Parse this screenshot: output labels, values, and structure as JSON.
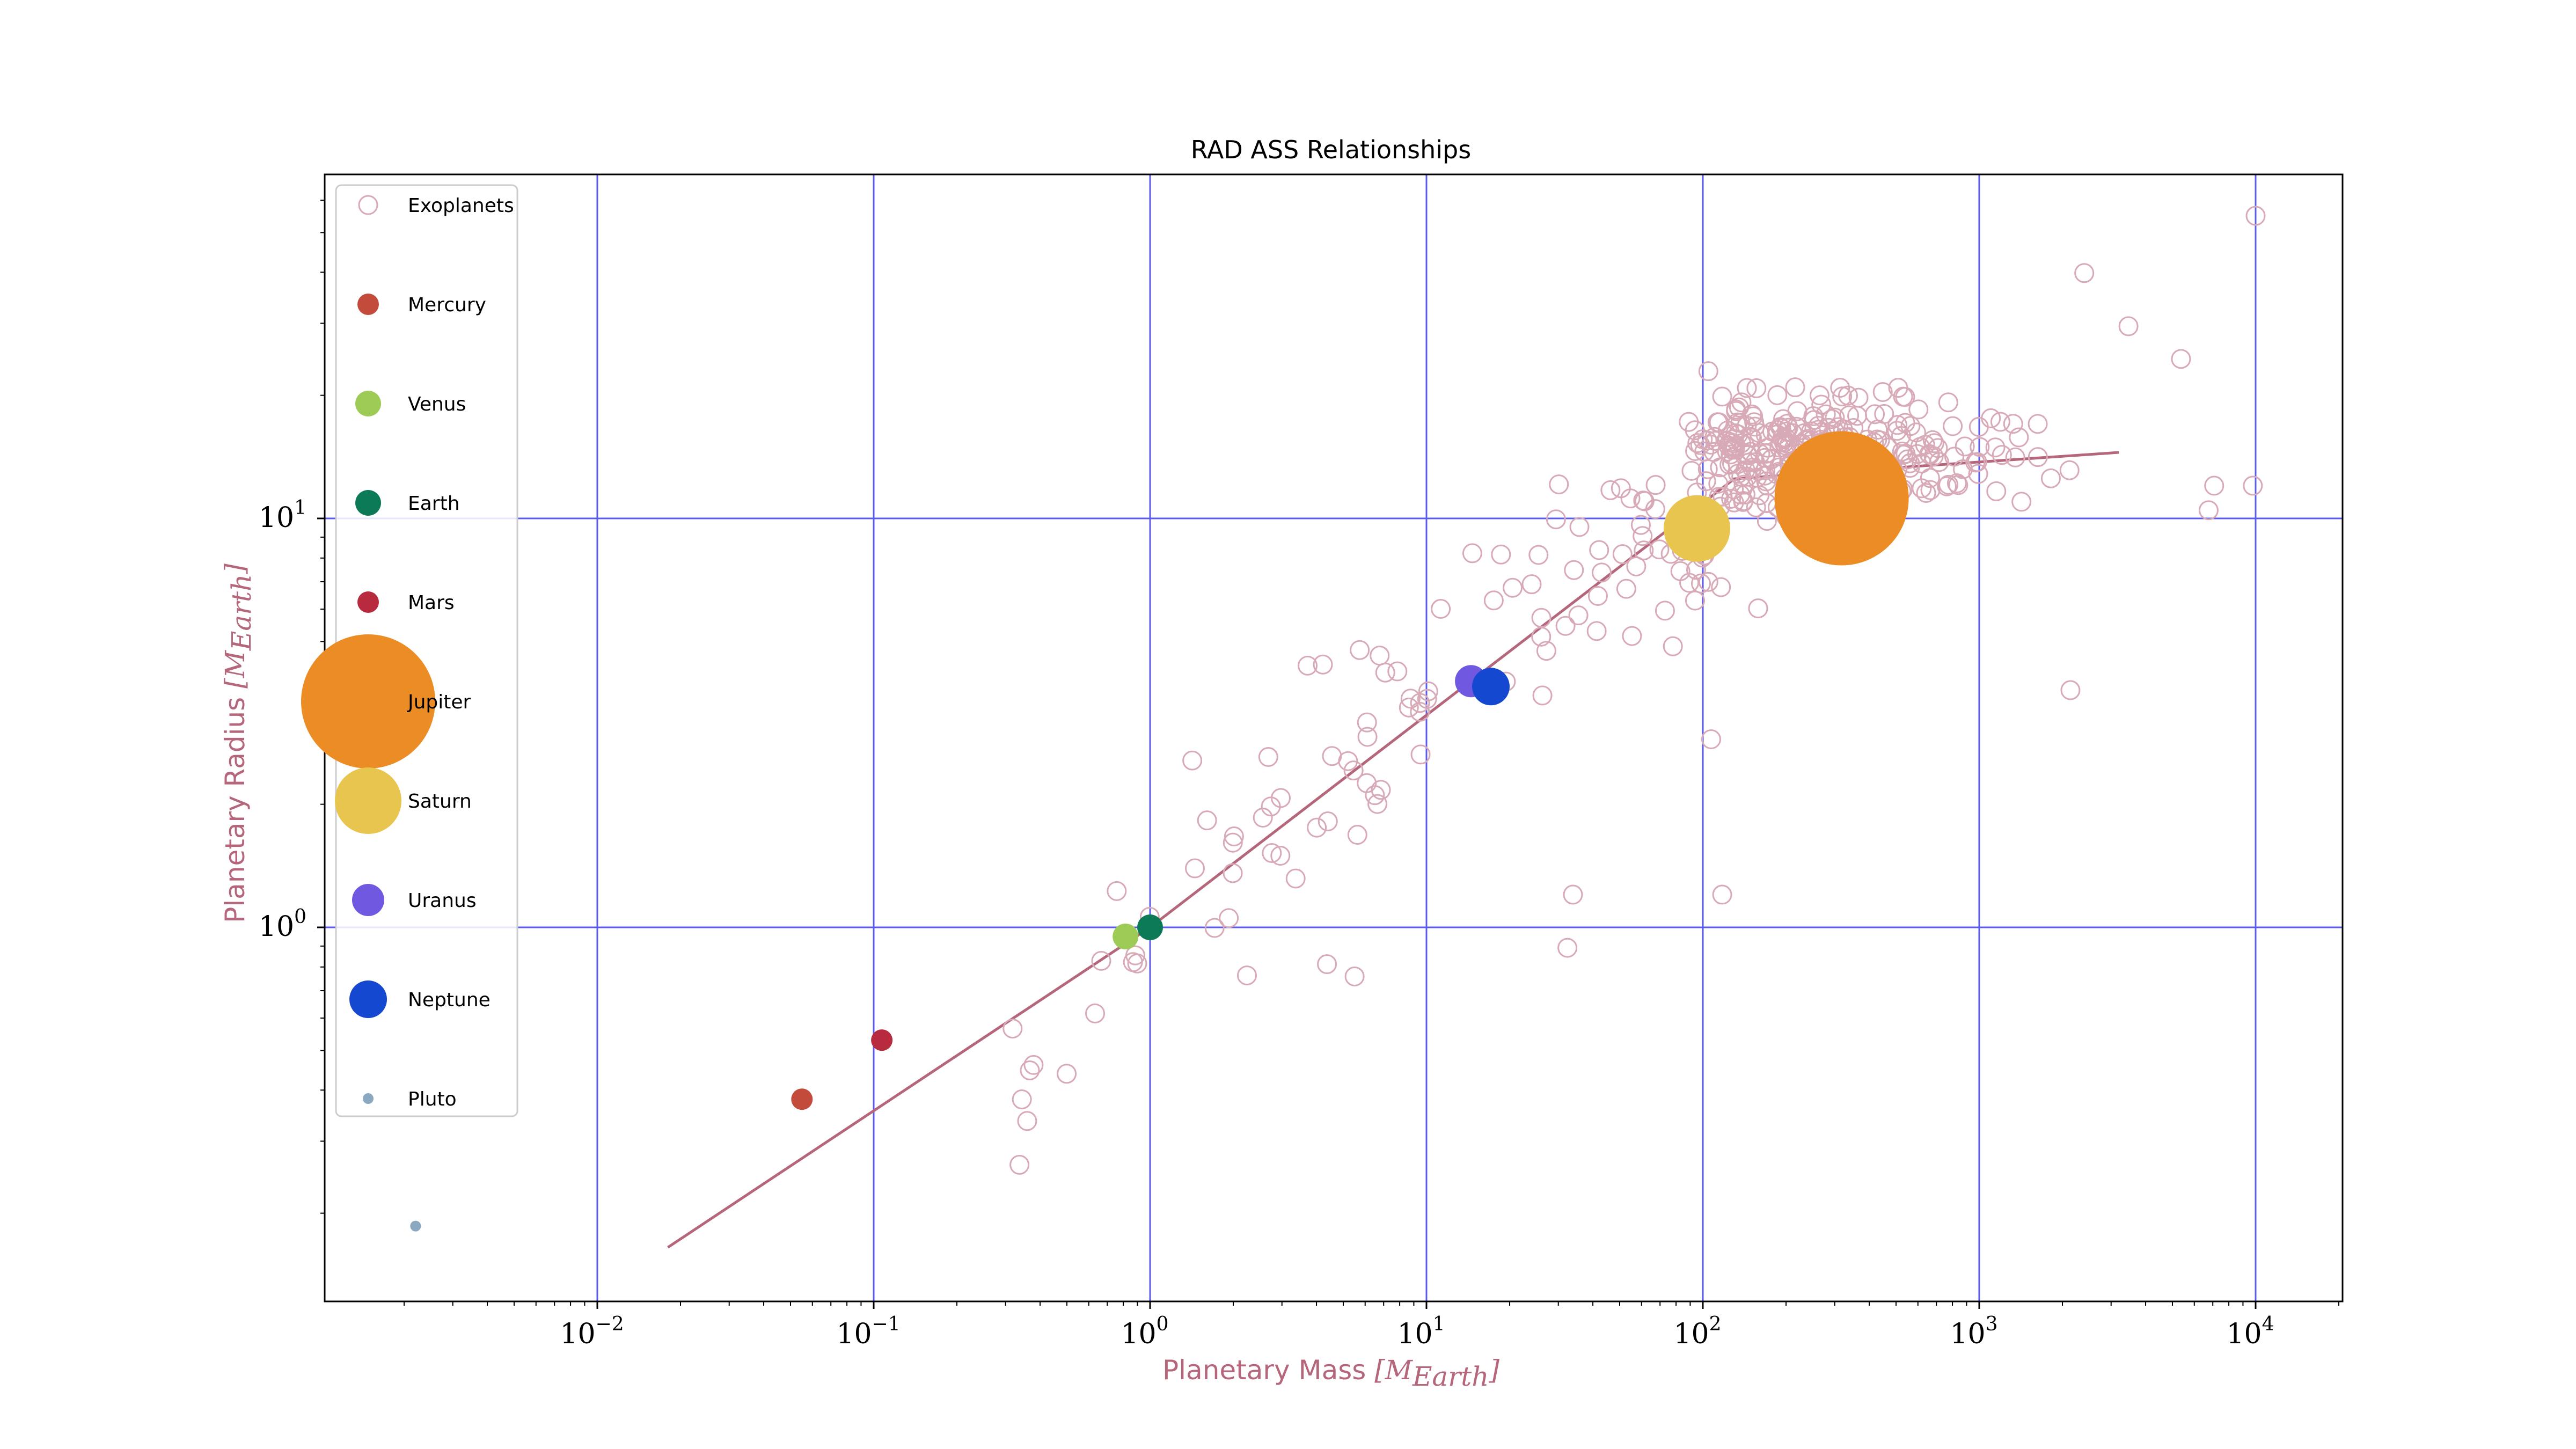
{
  "chart_data": {
    "type": "scatter",
    "title": "RAD ASS Relationships",
    "xlabel": "Planetary Mass",
    "xlabel_unit": "[M",
    "xlabel_unit_sub": "Earth",
    "xlabel_unit_close": "]",
    "ylabel": "Planetary Radius",
    "ylabel_unit": "[M",
    "ylabel_unit_sub": "Earth",
    "ylabel_unit_close": "]",
    "xscale": "log",
    "yscale": "log",
    "xlim": [
      0.0012,
      20000
    ],
    "ylim": [
      0.13,
      60
    ],
    "xticks": [
      {
        "base": "10",
        "exp": "−2",
        "value": 0.01
      },
      {
        "base": "10",
        "exp": "−1",
        "value": 0.1
      },
      {
        "base": "10",
        "exp": "0",
        "value": 1
      },
      {
        "base": "10",
        "exp": "1",
        "value": 10
      },
      {
        "base": "10",
        "exp": "2",
        "value": 100
      },
      {
        "base": "10",
        "exp": "3",
        "value": 1000
      },
      {
        "base": "10",
        "exp": "4",
        "value": 10000
      }
    ],
    "yticks": [
      {
        "base": "10",
        "exp": "0",
        "value": 1
      },
      {
        "base": "10",
        "exp": "1",
        "value": 10
      }
    ],
    "grid": true,
    "legend_position": "upper-left",
    "colors": {
      "exoplanets": "#d8a9b6",
      "fit_line": "#b5667a",
      "grid": "#5a5aee",
      "axis_label": "#b5667a"
    },
    "fit_line": [
      {
        "x": 0.018,
        "y": 0.165
      },
      {
        "x": 1.0,
        "y": 1.0
      },
      {
        "x": 130,
        "y": 12.5
      },
      {
        "x": 3200,
        "y": 14.5
      }
    ],
    "series": [
      {
        "name": "Exoplanets",
        "marker": "hollow-circle",
        "color": "#d8a9b6",
        "points": []
      },
      {
        "name": "Mercury",
        "color": "#c24b3c",
        "size": 40,
        "points": [
          {
            "x": 0.055,
            "y": 0.38
          }
        ]
      },
      {
        "name": "Venus",
        "color": "#9ccc55",
        "size": 48,
        "points": [
          {
            "x": 0.815,
            "y": 0.95
          }
        ]
      },
      {
        "name": "Earth",
        "color": "#0c7a56",
        "size": 48,
        "points": [
          {
            "x": 1.0,
            "y": 1.0
          }
        ]
      },
      {
        "name": "Mars",
        "color": "#b82a3e",
        "size": 40,
        "points": [
          {
            "x": 0.107,
            "y": 0.53
          }
        ]
      },
      {
        "name": "Jupiter",
        "color": "#ec8c24",
        "size": 250,
        "points": [
          {
            "x": 317.8,
            "y": 11.2
          }
        ]
      },
      {
        "name": "Saturn",
        "color": "#e8c54e",
        "size": 124,
        "points": [
          {
            "x": 95.2,
            "y": 9.45
          }
        ]
      },
      {
        "name": "Uranus",
        "color": "#7059e0",
        "size": 60,
        "points": [
          {
            "x": 14.5,
            "y": 4.0
          }
        ]
      },
      {
        "name": "Neptune",
        "color": "#1448d0",
        "size": 70,
        "points": [
          {
            "x": 17.1,
            "y": 3.88
          }
        ]
      },
      {
        "name": "Pluto",
        "color": "#8aa8c0",
        "size": 20,
        "points": [
          {
            "x": 0.0022,
            "y": 0.186
          }
        ]
      }
    ]
  }
}
